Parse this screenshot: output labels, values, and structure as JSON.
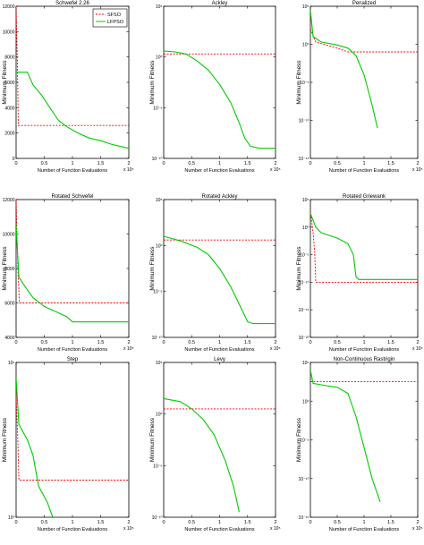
{
  "chart_data": [
    {
      "type": "line",
      "title": "Schwefel 2.26",
      "xlabel": "Number of Function Evaluations",
      "ylabel": "Minimum Fitness",
      "xlim": [
        0,
        2
      ],
      "x_exponent": "x 10⁵",
      "xticks": [
        "0",
        "0.5",
        "1",
        "1.5",
        "2"
      ],
      "yscale": "linear",
      "ylim": [
        0,
        12000
      ],
      "yticks": [
        "0",
        "2000",
        "4000",
        "6000",
        "8000",
        "10000",
        "12000"
      ],
      "legend": "top-right",
      "series": [
        {
          "name": "SFSO",
          "color": "#ff0000",
          "dash": true,
          "points": [
            [
              0,
              12000
            ],
            [
              0.02,
              8000
            ],
            [
              0.04,
              2600
            ],
            [
              2,
              2600
            ]
          ]
        },
        {
          "name": "LFPSO",
          "color": "#00cc00",
          "dash": false,
          "points": [
            [
              0,
              6800
            ],
            [
              0.2,
              6800
            ],
            [
              0.3,
              5800
            ],
            [
              0.45,
              5000
            ],
            [
              0.6,
              4000
            ],
            [
              0.75,
              3000
            ],
            [
              0.9,
              2500
            ],
            [
              1.1,
              2000
            ],
            [
              1.3,
              1600
            ],
            [
              1.5,
              1400
            ],
            [
              1.7,
              1100
            ],
            [
              1.9,
              900
            ],
            [
              2,
              800
            ]
          ]
        }
      ]
    },
    {
      "type": "line",
      "title": "Ackley",
      "xlabel": "Number of Function Evaluations",
      "ylabel": "Minimum Fitness",
      "xlim": [
        0,
        2
      ],
      "x_exponent": "x 10⁵",
      "xticks": [
        "0",
        "0.5",
        "1",
        "1.5",
        "2"
      ],
      "yscale": "log",
      "ylim": [
        -10,
        5
      ],
      "yticks": [
        "10⁻¹⁰",
        "10⁻⁵",
        "10⁰",
        "10⁵"
      ],
      "series": [
        {
          "name": "SFSO",
          "color": "#ff0000",
          "dash": true,
          "points": [
            [
              0,
              0.3
            ],
            [
              2,
              0.3
            ]
          ]
        },
        {
          "name": "LFPSO",
          "color": "#00cc00",
          "dash": false,
          "points": [
            [
              0,
              0.6
            ],
            [
              0.2,
              0.5
            ],
            [
              0.4,
              0.3
            ],
            [
              0.6,
              -0.4
            ],
            [
              0.8,
              -1.3
            ],
            [
              1.0,
              -2.7
            ],
            [
              1.2,
              -4.5
            ],
            [
              1.35,
              -6.5
            ],
            [
              1.45,
              -8.0
            ],
            [
              1.55,
              -8.8
            ],
            [
              1.7,
              -9.0
            ],
            [
              2,
              -9.0
            ]
          ]
        }
      ]
    },
    {
      "type": "line",
      "title": "Penalized",
      "xlabel": "Number of Function Evaluations",
      "ylabel": "Minimum Fitness",
      "xlim": [
        0,
        2
      ],
      "x_exponent": "x 10⁵",
      "xticks": [
        "0",
        "0.5",
        "1",
        "1.5",
        "2"
      ],
      "yscale": "log",
      "ylim": [
        -15,
        5
      ],
      "yticks": [
        "10⁻¹⁵",
        "10⁻¹⁰",
        "10⁻⁵",
        "10⁰",
        "10⁵"
      ],
      "series": [
        {
          "name": "SFSO",
          "color": "#ff0000",
          "dash": true,
          "points": [
            [
              0,
              2.0
            ],
            [
              0.1,
              0.3
            ],
            [
              0.5,
              -0.5
            ],
            [
              0.7,
              -1.0
            ],
            [
              2,
              -1.0
            ]
          ]
        },
        {
          "name": "LFPSO",
          "color": "#00cc00",
          "dash": false,
          "points": [
            [
              0,
              4.5
            ],
            [
              0.05,
              1.0
            ],
            [
              0.2,
              0.3
            ],
            [
              0.5,
              -0.1
            ],
            [
              0.7,
              -0.5
            ],
            [
              0.85,
              -1.5
            ],
            [
              1.0,
              -4.0
            ],
            [
              1.15,
              -8.0
            ],
            [
              1.25,
              -11.0
            ]
          ]
        }
      ]
    },
    {
      "type": "line",
      "title": "Rotated Schwefel",
      "xlabel": "Number of Function Evaluations",
      "ylabel": "Minimum Fitness",
      "xlim": [
        0,
        2
      ],
      "x_exponent": "x 10⁵",
      "xticks": [
        "0",
        "0.5",
        "1",
        "1.5",
        "2"
      ],
      "yscale": "linear",
      "ylim": [
        4000,
        12000
      ],
      "yticks": [
        "4000",
        "6000",
        "8000",
        "10000",
        "12000"
      ],
      "series": [
        {
          "name": "SFSO",
          "color": "#ff0000",
          "dash": true,
          "points": [
            [
              0,
              12000
            ],
            [
              0.03,
              8000
            ],
            [
              0.06,
              6000
            ],
            [
              2,
              6000
            ]
          ]
        },
        {
          "name": "LFPSO",
          "color": "#00cc00",
          "dash": false,
          "points": [
            [
              0,
              10500
            ],
            [
              0.05,
              7500
            ],
            [
              0.15,
              7000
            ],
            [
              0.3,
              6300
            ],
            [
              0.5,
              5800
            ],
            [
              0.7,
              5500
            ],
            [
              0.9,
              5200
            ],
            [
              1.0,
              4900
            ],
            [
              1.3,
              4900
            ],
            [
              2,
              4900
            ]
          ]
        }
      ]
    },
    {
      "type": "line",
      "title": "Rotated Ackley",
      "xlabel": "Number of Function Evaluations",
      "ylabel": "Minimum Fitness",
      "xlim": [
        0,
        2
      ],
      "x_exponent": "x 10⁵",
      "xticks": [
        "0",
        "0.5",
        "1",
        "1.5",
        "2"
      ],
      "yscale": "log",
      "ylim": [
        -10,
        5
      ],
      "yticks": [
        "10⁻¹⁰",
        "10⁻⁵",
        "10⁰",
        "10⁵"
      ],
      "series": [
        {
          "name": "SFSO",
          "color": "#ff0000",
          "dash": true,
          "points": [
            [
              0,
              0.6
            ],
            [
              2,
              0.6
            ]
          ]
        },
        {
          "name": "LFPSO",
          "color": "#00cc00",
          "dash": false,
          "points": [
            [
              0,
              1.0
            ],
            [
              0.3,
              0.5
            ],
            [
              0.6,
              -0.2
            ],
            [
              0.8,
              -1.0
            ],
            [
              1.0,
              -2.5
            ],
            [
              1.2,
              -4.5
            ],
            [
              1.4,
              -7.0
            ],
            [
              1.5,
              -8.3
            ],
            [
              1.6,
              -8.5
            ],
            [
              2,
              -8.5
            ]
          ]
        }
      ]
    },
    {
      "type": "line",
      "title": "Rotated Griewank",
      "xlabel": "Number of Function Evaluations",
      "ylabel": "Minimum Fitness",
      "xlim": [
        0,
        2
      ],
      "x_exponent": "x 10⁵",
      "xticks": [
        "0",
        "0.5",
        "1",
        "1.5",
        "2"
      ],
      "yscale": "log",
      "ylim": [
        -20,
        5
      ],
      "yticks": [
        "10⁻²⁰",
        "10⁻¹⁵",
        "10⁻¹⁰",
        "10⁻⁵",
        "10⁰",
        "10⁵"
      ],
      "series": [
        {
          "name": "SFSO",
          "color": "#ff0000",
          "dash": true,
          "points": [
            [
              0,
              3.0
            ],
            [
              0.05,
              -1.0
            ],
            [
              0.08,
              -4.5
            ],
            [
              0.1,
              -10.0
            ],
            [
              2,
              -10.0
            ]
          ]
        },
        {
          "name": "LFPSO",
          "color": "#00cc00",
          "dash": false,
          "points": [
            [
              0,
              2.5
            ],
            [
              0.1,
              0.0
            ],
            [
              0.2,
              -1.0
            ],
            [
              0.5,
              -2.0
            ],
            [
              0.7,
              -3.0
            ],
            [
              0.8,
              -5.0
            ],
            [
              0.85,
              -9.0
            ],
            [
              0.9,
              -9.5
            ],
            [
              2,
              -9.5
            ]
          ]
        }
      ]
    },
    {
      "type": "line",
      "title": "Step",
      "xlabel": "Number of Function Evaluations",
      "ylabel": "Minimum Fitness",
      "xlim": [
        0,
        2
      ],
      "x_exponent": "x 10⁵",
      "xticks": [
        "0",
        "0.5",
        "1",
        "1.5",
        "2"
      ],
      "yscale": "log",
      "ylim": [
        0,
        5
      ],
      "yticks": [
        "10⁰",
        "10⁵"
      ],
      "series": [
        {
          "name": "SFSO",
          "color": "#ff0000",
          "dash": true,
          "points": [
            [
              0,
              4.0
            ],
            [
              0.03,
              2.5
            ],
            [
              0.05,
              1.2
            ],
            [
              2,
              1.2
            ]
          ]
        },
        {
          "name": "LFPSO",
          "color": "#00cc00",
          "dash": false,
          "points": [
            [
              0,
              4.5
            ],
            [
              0.05,
              3.0
            ],
            [
              0.2,
              2.5
            ],
            [
              0.3,
              2.0
            ],
            [
              0.35,
              1.5
            ],
            [
              0.4,
              1.0
            ],
            [
              0.55,
              0.5
            ],
            [
              0.65,
              0.0
            ]
          ]
        }
      ]
    },
    {
      "type": "line",
      "title": "Levy",
      "xlabel": "Number of Function Evaluations",
      "ylabel": "Minimum Fitness",
      "xlim": [
        0,
        2
      ],
      "x_exponent": "x 10⁵",
      "xticks": [
        "0",
        "0.5",
        "1",
        "1.5",
        "2"
      ],
      "yscale": "log",
      "ylim": [
        -10,
        5
      ],
      "yticks": [
        "10⁻¹⁰",
        "10⁻⁵",
        "10⁰",
        "10⁵"
      ],
      "series": [
        {
          "name": "SFSO",
          "color": "#ff0000",
          "dash": true,
          "points": [
            [
              0,
              0.5
            ],
            [
              2,
              0.5
            ]
          ]
        },
        {
          "name": "LFPSO",
          "color": "#00cc00",
          "dash": false,
          "points": [
            [
              0,
              1.5
            ],
            [
              0.3,
              1.2
            ],
            [
              0.5,
              0.5
            ],
            [
              0.7,
              -0.5
            ],
            [
              0.9,
              -2.0
            ],
            [
              1.1,
              -4.5
            ],
            [
              1.25,
              -7.0
            ],
            [
              1.35,
              -9.5
            ]
          ]
        }
      ]
    },
    {
      "type": "line",
      "title": "Non-Continuous Rastrigin",
      "xlabel": "Number of Function Evaluations",
      "ylabel": "Minimum Fitness",
      "xlim": [
        0,
        2
      ],
      "x_exponent": "x 10⁵",
      "xticks": [
        "0",
        "0.5",
        "1",
        "1.5",
        "2"
      ],
      "yscale": "log",
      "ylim": [
        -15,
        5
      ],
      "yticks": [
        "10⁻¹⁵",
        "10⁻¹⁰",
        "10⁻⁵",
        "10⁰",
        "10⁵"
      ],
      "series": [
        {
          "name": "SFSO",
          "color": "#ff0000",
          "dash": true,
          "points": [
            [
              0,
              2.5
            ],
            [
              0.1,
              2.5
            ],
            [
              2,
              2.5
            ]
          ]
        },
        {
          "name": "LFPSO",
          "color": "#00cc00",
          "dash": false,
          "points": [
            [
              0,
              4.0
            ],
            [
              0.05,
              2.3
            ],
            [
              0.3,
              2.0
            ],
            [
              0.5,
              1.8
            ],
            [
              0.7,
              1.0
            ],
            [
              0.85,
              -2.0
            ],
            [
              1.0,
              -6.0
            ],
            [
              1.15,
              -10.0
            ],
            [
              1.3,
              -13.0
            ]
          ]
        }
      ]
    }
  ]
}
